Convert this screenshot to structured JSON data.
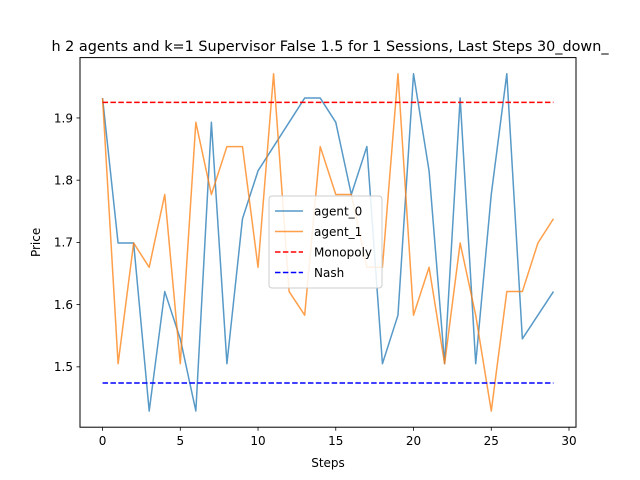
{
  "chart_data": {
    "type": "line",
    "title": "h 2 agents and k=1 Supervisor False 1.5 for 1 Sessions, Last Steps 30_down_",
    "xlabel": "Steps",
    "ylabel": "Price",
    "xlim": [
      -1.45,
      30.45
    ],
    "ylim": [
      1.403,
      1.997
    ],
    "xticks": [
      0,
      5,
      10,
      15,
      20,
      25,
      30
    ],
    "yticks": [
      1.5,
      1.6,
      1.7,
      1.8,
      1.9
    ],
    "grid": false,
    "legend_position": "center",
    "x": [
      0,
      1,
      2,
      3,
      4,
      5,
      6,
      7,
      8,
      9,
      10,
      11,
      12,
      13,
      14,
      15,
      16,
      17,
      18,
      19,
      20,
      21,
      22,
      23,
      24,
      25,
      26,
      27,
      28,
      29
    ],
    "series": [
      {
        "name": "agent_0",
        "color": "#1f77b4",
        "style": "solid",
        "values": [
          1.932,
          1.699,
          1.699,
          1.429,
          1.621,
          1.545,
          1.429,
          1.893,
          1.505,
          1.738,
          1.815,
          1.854,
          1.893,
          1.932,
          1.932,
          1.893,
          1.777,
          1.854,
          1.505,
          1.583,
          1.971,
          1.815,
          1.505,
          1.932,
          1.505,
          1.777,
          1.971,
          1.545,
          1.583,
          1.621
        ]
      },
      {
        "name": "agent_1",
        "color": "#ff7f0e",
        "style": "solid",
        "values": [
          1.932,
          1.505,
          1.699,
          1.66,
          1.777,
          1.505,
          1.893,
          1.777,
          1.854,
          1.854,
          1.66,
          1.971,
          1.621,
          1.583,
          1.854,
          1.777,
          1.777,
          1.66,
          1.66,
          1.971,
          1.583,
          1.66,
          1.505,
          1.699,
          1.583,
          1.429,
          1.621,
          1.621,
          1.699,
          1.738
        ]
      },
      {
        "name": "Monopoly",
        "color": "#ff0000",
        "style": "dashed",
        "values": [
          1.925,
          1.925,
          1.925,
          1.925,
          1.925,
          1.925,
          1.925,
          1.925,
          1.925,
          1.925,
          1.925,
          1.925,
          1.925,
          1.925,
          1.925,
          1.925,
          1.925,
          1.925,
          1.925,
          1.925,
          1.925,
          1.925,
          1.925,
          1.925,
          1.925,
          1.925,
          1.925,
          1.925,
          1.925,
          1.925
        ]
      },
      {
        "name": "Nash",
        "color": "#0000ff",
        "style": "dashed",
        "values": [
          1.474,
          1.474,
          1.474,
          1.474,
          1.474,
          1.474,
          1.474,
          1.474,
          1.474,
          1.474,
          1.474,
          1.474,
          1.474,
          1.474,
          1.474,
          1.474,
          1.474,
          1.474,
          1.474,
          1.474,
          1.474,
          1.474,
          1.474,
          1.474,
          1.474,
          1.474,
          1.474,
          1.474,
          1.474,
          1.474
        ]
      }
    ]
  }
}
